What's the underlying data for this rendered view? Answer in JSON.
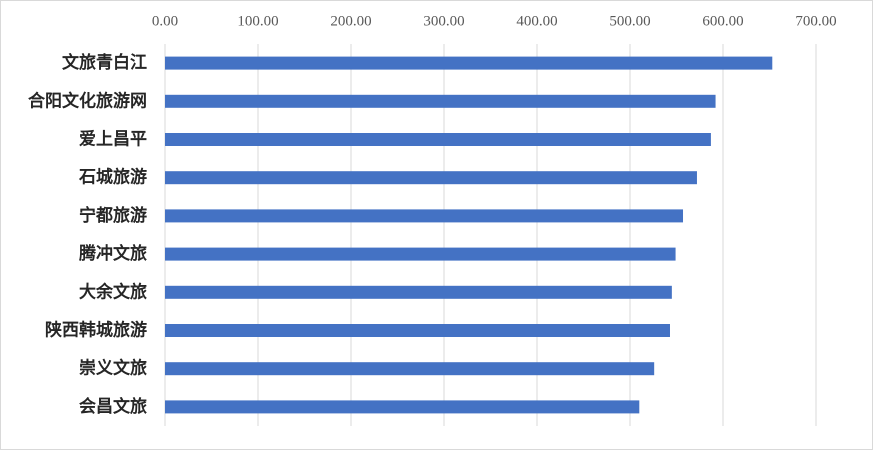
{
  "chart_data": {
    "type": "hbar",
    "categories": [
      "文旅青白江",
      "合阳文化旅游网",
      "爱上昌平",
      "石城旅游",
      "宁都旅游",
      "腾冲文旅",
      "大余文旅",
      "陕西韩城旅游",
      "崇义文旅",
      "会昌文旅"
    ],
    "values": [
      653,
      592,
      587,
      572,
      557,
      549,
      545,
      543,
      526,
      510
    ],
    "color": "#4472c4",
    "xlim": [
      0,
      700
    ],
    "xticks": [
      {
        "value": 0,
        "label": "0.00"
      },
      {
        "value": 100,
        "label": "100.00"
      },
      {
        "value": 200,
        "label": "200.00"
      },
      {
        "value": 300,
        "label": "300.00"
      },
      {
        "value": 400,
        "label": "400.00"
      },
      {
        "value": 500,
        "label": "500.00"
      },
      {
        "value": 600,
        "label": "600.00"
      },
      {
        "value": 700,
        "label": "700.00"
      }
    ],
    "grid": true
  }
}
